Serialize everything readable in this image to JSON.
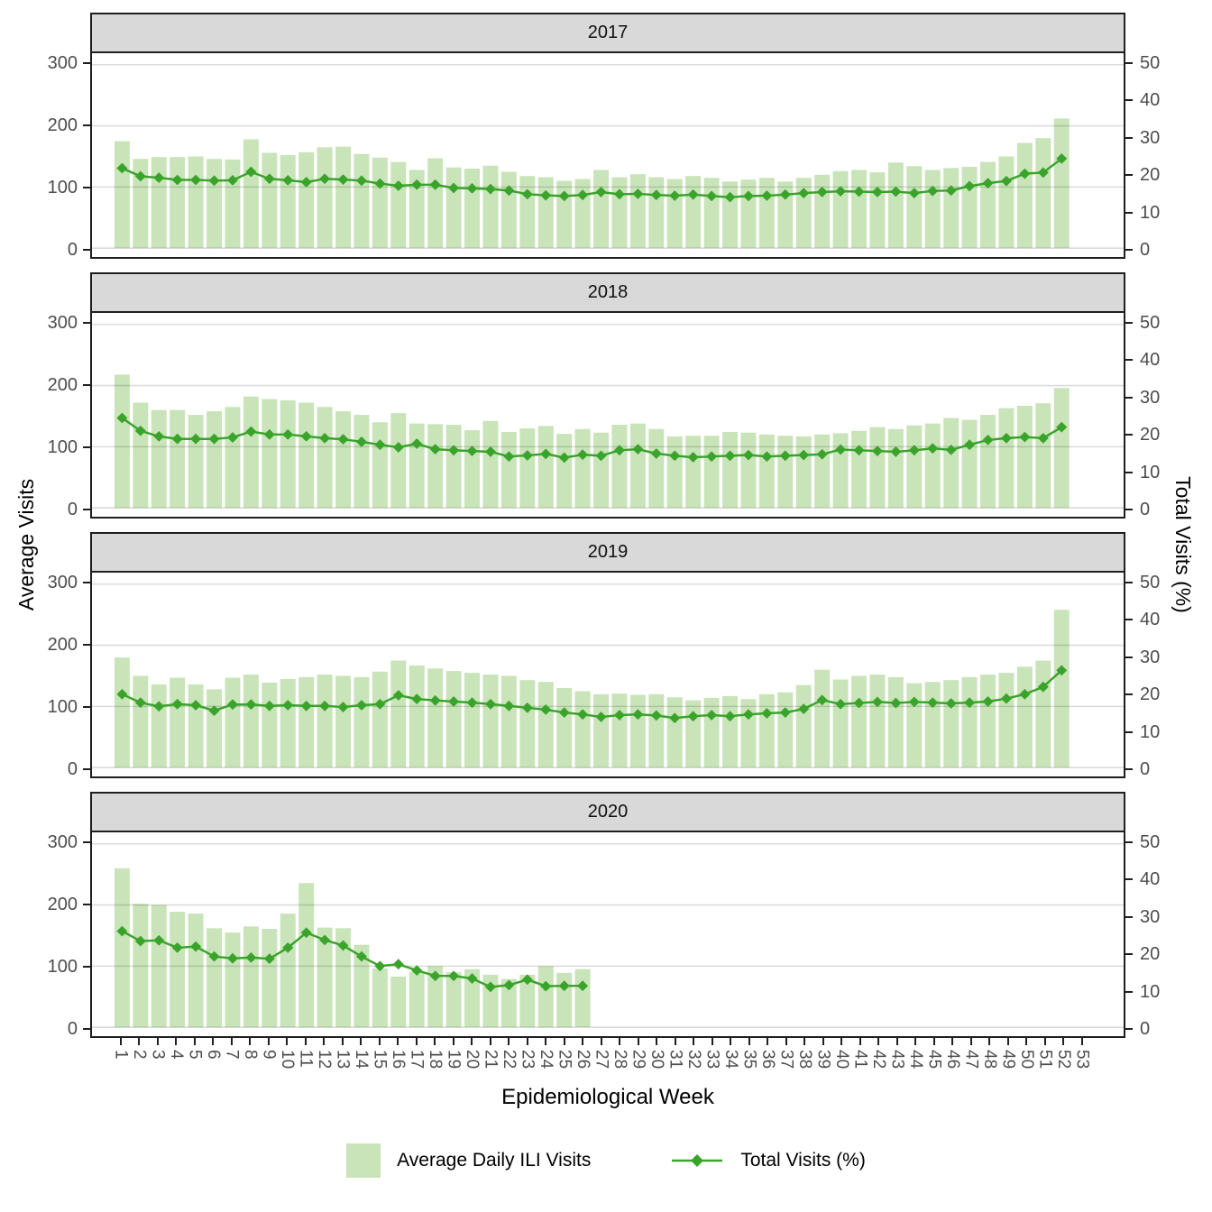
{
  "figure": {
    "left_axis_label": "Average Visits",
    "right_axis_label": "Total Visits (%)",
    "x_axis_label": "Epidemiological Week"
  },
  "legend": [
    {
      "label": "Average Daily ILI Visits",
      "type": "bar-swatch"
    },
    {
      "label": "Total Visits (%)",
      "type": "line-marker"
    }
  ],
  "style": {
    "bar_color": "#c8e4b8",
    "line_color": "#3aa32b",
    "strip_bg": "#d9d9d9",
    "grid_color": "rgba(0,0,0,0.14)",
    "tick_text_color": "#4d4d4d"
  },
  "axes": {
    "left": {
      "label": "Average Visits",
      "ticks": [
        0,
        100,
        200,
        300
      ],
      "max": 300
    },
    "right": {
      "label": "Total Visits (%)",
      "ticks": [
        0,
        10,
        20,
        30,
        40,
        50
      ],
      "max": 50
    },
    "x": {
      "label": "Epidemiological Week",
      "ticks": [
        1,
        2,
        3,
        4,
        5,
        6,
        7,
        8,
        9,
        10,
        11,
        12,
        13,
        14,
        15,
        16,
        17,
        18,
        19,
        20,
        21,
        22,
        23,
        24,
        25,
        26,
        27,
        28,
        29,
        30,
        31,
        32,
        33,
        34,
        35,
        36,
        37,
        38,
        39,
        40,
        41,
        42,
        43,
        44,
        45,
        46,
        47,
        48,
        49,
        50,
        51,
        52,
        53
      ]
    }
  },
  "chart_data": [
    {
      "type": "bar+line",
      "facet": "2017",
      "x_start": 1,
      "bar_series_name": "Average Daily ILI Visits",
      "line_series_name": "Total Visits (%)",
      "bars": [
        175,
        146,
        149,
        149,
        150,
        146,
        145,
        178,
        156,
        152,
        157,
        165,
        166,
        154,
        148,
        141,
        128,
        147,
        132,
        130,
        135,
        125,
        118,
        116,
        110,
        113,
        128,
        116,
        121,
        116,
        113,
        118,
        115,
        109,
        112,
        115,
        109,
        115,
        120,
        126,
        128,
        124,
        140,
        134,
        128,
        131,
        133,
        141,
        150,
        172,
        180,
        212
      ],
      "line_pct": [
        21.8,
        19.6,
        19.2,
        18.6,
        18.6,
        18.4,
        18.5,
        20.8,
        18.9,
        18.5,
        18.0,
        18.9,
        18.7,
        18.4,
        17.6,
        17.0,
        17.3,
        17.3,
        16.4,
        16.3,
        16.1,
        15.7,
        14.7,
        14.4,
        14.2,
        14.5,
        15.3,
        14.7,
        14.8,
        14.5,
        14.3,
        14.6,
        14.2,
        13.9,
        14.2,
        14.3,
        14.6,
        15.0,
        15.3,
        15.5,
        15.4,
        15.3,
        15.4,
        15.0,
        15.6,
        15.7,
        16.9,
        17.7,
        18.3,
        20.3,
        20.6,
        24.4
      ]
    },
    {
      "type": "bar+line",
      "facet": "2018",
      "x_start": 1,
      "bar_series_name": "Average Daily ILI Visits",
      "line_series_name": "Total Visits (%)",
      "bars": [
        218,
        172,
        160,
        160,
        152,
        158,
        165,
        182,
        178,
        176,
        172,
        165,
        158,
        152,
        140,
        155,
        138,
        137,
        136,
        127,
        142,
        124,
        130,
        134,
        121,
        129,
        123,
        136,
        138,
        129,
        117,
        118,
        118,
        124,
        123,
        120,
        118,
        117,
        120,
        122,
        126,
        132,
        129,
        135,
        138,
        147,
        144,
        152,
        163,
        167,
        171,
        196
      ],
      "line_pct": [
        24.5,
        21.0,
        19.5,
        18.8,
        18.8,
        18.8,
        19.2,
        20.8,
        20.0,
        20.0,
        19.5,
        19.0,
        18.7,
        18.0,
        17.2,
        16.5,
        17.5,
        16.0,
        15.7,
        15.5,
        15.3,
        14.0,
        14.3,
        14.7,
        13.7,
        14.5,
        14.2,
        15.7,
        16.0,
        14.8,
        14.2,
        13.8,
        14.0,
        14.2,
        14.4,
        14.0,
        14.2,
        14.4,
        14.6,
        15.9,
        15.7,
        15.5,
        15.3,
        15.7,
        16.2,
        15.8,
        17.2,
        18.5,
        19.0,
        19.3,
        19.0,
        22.0
      ]
    },
    {
      "type": "bar+line",
      "facet": "2019",
      "x_start": 1,
      "bar_series_name": "Average Daily ILI Visits",
      "line_series_name": "Total Visits (%)",
      "bars": [
        180,
        150,
        136,
        147,
        136,
        128,
        147,
        152,
        139,
        145,
        148,
        152,
        150,
        148,
        157,
        175,
        167,
        162,
        158,
        155,
        152,
        150,
        143,
        140,
        130,
        125,
        120,
        121,
        119,
        120,
        115,
        110,
        114,
        117,
        112,
        120,
        123,
        135,
        160,
        144,
        150,
        152,
        148,
        138,
        140,
        143,
        148,
        152,
        155,
        165,
        175,
        258
      ],
      "line_pct": [
        20.0,
        17.7,
        16.7,
        17.3,
        17.0,
        15.5,
        17.2,
        17.2,
        16.8,
        17.0,
        16.8,
        16.8,
        16.5,
        17.0,
        17.3,
        19.7,
        18.7,
        18.3,
        18.0,
        17.7,
        17.3,
        16.8,
        16.3,
        15.8,
        15.0,
        14.5,
        13.8,
        14.3,
        14.5,
        14.2,
        13.5,
        14.0,
        14.3,
        14.0,
        14.5,
        14.8,
        15.0,
        16.0,
        18.4,
        17.3,
        17.6,
        17.9,
        17.6,
        17.9,
        17.7,
        17.5,
        17.7,
        18.0,
        18.8,
        20.0,
        22.0,
        26.5
      ]
    },
    {
      "type": "bar+line",
      "facet": "2020",
      "x_start": 1,
      "bar_series_name": "Average Daily ILI Visits",
      "line_series_name": "Total Visits (%)",
      "bars": [
        260,
        202,
        200,
        189,
        186,
        162,
        155,
        165,
        161,
        186,
        236,
        163,
        162,
        135,
        96,
        83,
        91,
        100,
        90,
        95,
        86,
        79,
        86,
        100,
        89,
        95
      ],
      "line_pct": [
        26.2,
        23.5,
        23.7,
        21.7,
        22.0,
        19.3,
        18.8,
        19.0,
        18.7,
        21.7,
        25.8,
        23.8,
        22.3,
        19.3,
        16.7,
        17.2,
        15.5,
        14.0,
        14.0,
        13.3,
        11.0,
        11.5,
        13.0,
        11.2,
        11.3,
        11.3
      ]
    }
  ]
}
